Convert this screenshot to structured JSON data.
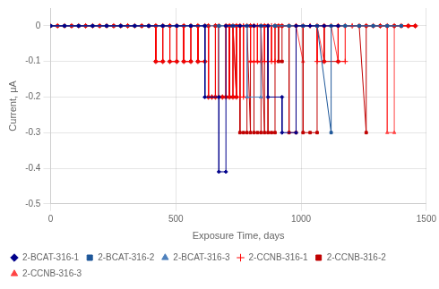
{
  "chart_data": {
    "type": "line",
    "xlabel": "Exposure Time, days",
    "ylabel": "Current, μA",
    "xlim": [
      0,
      1500
    ],
    "ylim": [
      -0.5,
      0.05
    ],
    "xticks": [
      0,
      500,
      1000,
      1500
    ],
    "yticks": [
      0.0,
      -0.1,
      -0.2,
      -0.3,
      -0.4,
      -0.5
    ],
    "grid": true,
    "legend": "lower left",
    "series": [
      {
        "name": "2-BCAT-316-1",
        "color": "#00008B",
        "marker": "diamond",
        "x": [
          0,
          56,
          112,
          168,
          224,
          280,
          336,
          392,
          448,
          504,
          560,
          616,
          616,
          672,
          672,
          700,
          700,
          756,
          812,
          868,
          868,
          924,
          924,
          980,
          980,
          1036,
          1092,
          1148
        ],
        "values": [
          0,
          0,
          0,
          0,
          0,
          0,
          0,
          0,
          0,
          0,
          0,
          0,
          -0.2,
          -0.2,
          -0.41,
          -0.41,
          0,
          0,
          0,
          0,
          -0.2,
          -0.2,
          -0.3,
          -0.3,
          0,
          0,
          0,
          0
        ]
      },
      {
        "name": "2-BCAT-316-2",
        "color": "#1E5799",
        "marker": "square",
        "x": [
          0,
          56,
          112,
          168,
          224,
          280,
          336,
          392,
          448,
          504,
          560,
          616,
          672,
          728,
          784,
          840,
          896,
          952,
          1008,
          1064,
          1120,
          1120,
          1176,
          1232,
          1288,
          1344,
          1400
        ],
        "values": [
          0,
          0,
          0,
          0,
          0,
          0,
          0,
          0,
          0,
          0,
          0,
          0,
          0,
          0,
          0,
          0,
          0,
          0,
          0,
          0,
          -0.3,
          0,
          0,
          0,
          0,
          0,
          0
        ]
      },
      {
        "name": "2-BCAT-316-3",
        "color": "#4F81BD",
        "marker": "triangle",
        "x": [
          0,
          56,
          112,
          168,
          224,
          280,
          336,
          392,
          448,
          504,
          560,
          616,
          616,
          672,
          672,
          728,
          784,
          784,
          840,
          840,
          896,
          952,
          1008,
          1064,
          1120,
          1176,
          1232,
          1288,
          1344,
          1400
        ],
        "values": [
          0,
          0,
          0,
          0,
          0,
          0,
          0,
          0,
          0,
          0,
          0,
          0,
          -0.2,
          -0.2,
          0,
          0,
          0,
          -0.2,
          -0.2,
          0,
          0,
          0,
          0,
          0,
          0,
          0,
          0,
          0,
          0,
          0
        ]
      },
      {
        "name": "2-CCNB-316-1",
        "color": "#FF0000",
        "marker": "plus",
        "x": [
          0,
          28,
          56,
          84,
          112,
          140,
          168,
          196,
          224,
          252,
          280,
          308,
          336,
          364,
          392,
          420,
          420,
          448,
          448,
          476,
          476,
          504,
          504,
          532,
          532,
          560,
          560,
          588,
          588,
          616,
          616,
          630,
          630,
          644,
          658,
          658,
          672,
          672,
          686,
          700,
          700,
          714,
          714,
          728,
          728,
          742,
          742,
          756,
          756,
          770,
          770,
          784,
          784,
          798,
          798,
          812,
          812,
          826,
          826,
          840,
          840,
          854,
          854,
          868,
          868,
          882,
          882,
          896,
          896,
          910,
          924,
          952,
          980,
          1008,
          1036,
          1064,
          1064,
          1092,
          1092,
          1120,
          1148,
          1148,
          1176,
          1176,
          1204,
          1232,
          1260,
          1288,
          1316,
          1344,
          1372,
          1400,
          1428,
          1456
        ],
        "values": [
          0,
          0,
          0,
          0,
          0,
          0,
          0,
          0,
          0,
          0,
          0,
          0,
          0,
          0,
          0,
          0,
          -0.1,
          -0.1,
          0,
          0,
          -0.1,
          -0.1,
          0,
          0,
          -0.1,
          -0.1,
          0,
          0,
          -0.1,
          -0.1,
          0,
          0,
          -0.2,
          -0.2,
          -0.2,
          0,
          0,
          -0.2,
          -0.2,
          -0.2,
          0,
          0,
          -0.2,
          -0.2,
          0,
          0,
          -0.2,
          -0.2,
          0,
          0,
          -0.2,
          -0.2,
          0,
          0,
          -0.1,
          -0.1,
          0,
          0,
          -0.1,
          -0.1,
          0,
          0,
          -0.1,
          -0.1,
          0,
          0,
          -0.1,
          -0.1,
          0,
          0,
          0,
          0,
          0,
          0,
          0,
          0,
          -0.1,
          -0.1,
          0,
          0,
          0,
          -0.1,
          -0.1,
          0,
          0,
          0,
          0,
          0,
          0,
          0,
          0,
          0,
          0,
          0
        ]
      },
      {
        "name": "2-CCNB-316-2",
        "color": "#C00000",
        "marker": "square",
        "x": [
          0,
          28,
          56,
          84,
          112,
          140,
          168,
          196,
          224,
          252,
          280,
          308,
          336,
          364,
          392,
          420,
          420,
          448,
          448,
          476,
          476,
          504,
          504,
          532,
          532,
          560,
          560,
          588,
          588,
          616,
          616,
          630,
          630,
          644,
          658,
          658,
          672,
          672,
          686,
          700,
          700,
          714,
          714,
          728,
          728,
          742,
          742,
          756,
          756,
          770,
          784,
          784,
          798,
          798,
          812,
          812,
          826,
          840,
          840,
          854,
          854,
          868,
          868,
          882,
          896,
          896,
          910,
          910,
          924,
          924,
          952,
          952,
          980,
          980,
          1008,
          1008,
          1036,
          1064,
          1064,
          1092,
          1092,
          1148,
          1148,
          1232,
          1260,
          1260,
          1288,
          1316,
          1344,
          1372,
          1400,
          1428,
          1456
        ],
        "values": [
          0,
          0,
          0,
          0,
          0,
          0,
          0,
          0,
          0,
          0,
          0,
          0,
          0,
          0,
          0,
          0,
          -0.1,
          -0.1,
          0,
          0,
          -0.1,
          -0.1,
          0,
          0,
          -0.1,
          -0.1,
          0,
          0,
          -0.1,
          -0.1,
          0,
          0,
          -0.2,
          -0.2,
          -0.2,
          0,
          0,
          -0.2,
          -0.2,
          -0.2,
          0,
          0,
          -0.2,
          -0.2,
          0,
          -0.2,
          0,
          0,
          -0.3,
          -0.3,
          -0.3,
          0,
          -0.3,
          0,
          0,
          -0.3,
          -0.3,
          -0.3,
          0,
          -0.3,
          0,
          0,
          -0.3,
          -0.3,
          -0.3,
          0,
          0,
          -0.1,
          -0.1,
          0,
          0,
          -0.3,
          -0.3,
          0,
          0,
          -0.3,
          -0.3,
          -0.3,
          0,
          0,
          -0.1,
          -0.1,
          0,
          0,
          -0.3,
          0,
          0,
          0,
          0,
          0,
          0,
          0,
          0
        ]
      },
      {
        "name": "2-CCNB-316-3",
        "color": "#FF4444",
        "marker": "triangle",
        "x": [
          0,
          28,
          56,
          84,
          112,
          140,
          168,
          196,
          224,
          252,
          280,
          308,
          336,
          364,
          392,
          420,
          420,
          448,
          448,
          476,
          476,
          504,
          504,
          532,
          532,
          560,
          560,
          588,
          588,
          616,
          616,
          630,
          630,
          644,
          658,
          658,
          672,
          672,
          686,
          700,
          700,
          714,
          714,
          728,
          728,
          742,
          742,
          756,
          770,
          784,
          798,
          798,
          812,
          812,
          826,
          826,
          840,
          840,
          854,
          868,
          896,
          924,
          952,
          980,
          1008,
          1008,
          1036,
          1064,
          1092,
          1092,
          1120,
          1148,
          1148,
          1176,
          1204,
          1232,
          1260,
          1288,
          1316,
          1344,
          1344,
          1372,
          1372,
          1400,
          1428,
          1456
        ],
        "values": [
          0,
          0,
          0,
          0,
          0,
          0,
          0,
          0,
          0,
          0,
          0,
          0,
          0,
          0,
          0,
          0,
          -0.1,
          -0.1,
          0,
          0,
          -0.1,
          -0.1,
          0,
          0,
          -0.1,
          -0.1,
          0,
          0,
          -0.1,
          -0.1,
          0,
          0,
          -0.2,
          -0.2,
          -0.2,
          0,
          0,
          -0.2,
          -0.2,
          -0.2,
          0,
          0,
          -0.2,
          -0.2,
          0,
          -0.2,
          0,
          0,
          0,
          0,
          0,
          -0.1,
          -0.1,
          0,
          0,
          -0.1,
          -0.1,
          0,
          0,
          0,
          0,
          0,
          0,
          0,
          -0.1,
          0,
          0,
          0,
          -0.1,
          0,
          0,
          -0.1,
          0,
          0,
          0,
          0,
          0,
          0,
          0,
          0,
          -0.3,
          -0.3,
          0,
          0,
          0,
          0
        ]
      }
    ]
  }
}
